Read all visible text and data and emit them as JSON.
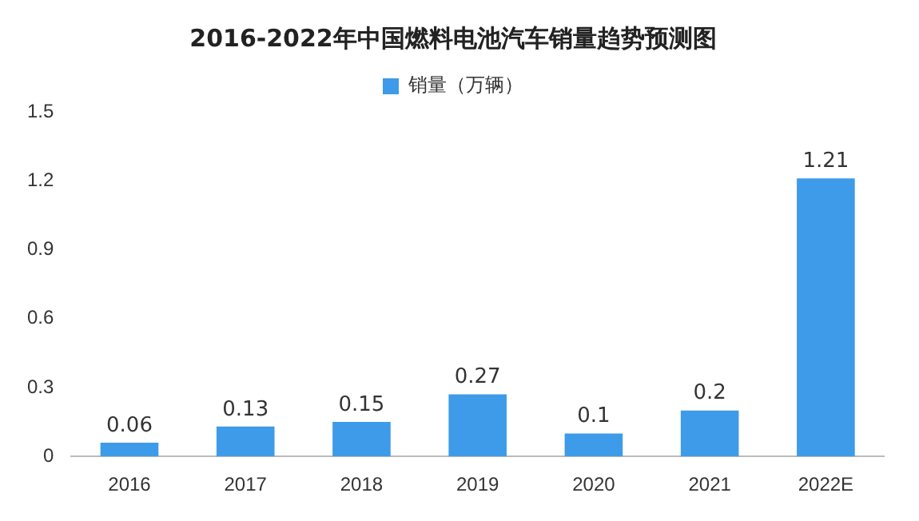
{
  "chart_data": {
    "type": "bar",
    "title": "2016-2022年中国燃料电池汽车销量趋势预测图",
    "categories": [
      "2016",
      "2017",
      "2018",
      "2019",
      "2020",
      "2021",
      "2022E"
    ],
    "series": [
      {
        "name": "销量（万辆）",
        "color": "#3d9be9",
        "values": [
          0.06,
          0.13,
          0.15,
          0.27,
          0.1,
          0.2,
          1.21
        ]
      }
    ],
    "ylim": [
      0,
      1.5
    ],
    "yticks": [
      0,
      0.3,
      0.6,
      0.9,
      1.2,
      1.5
    ],
    "grid": false,
    "legend": "top",
    "data_labels": true
  }
}
